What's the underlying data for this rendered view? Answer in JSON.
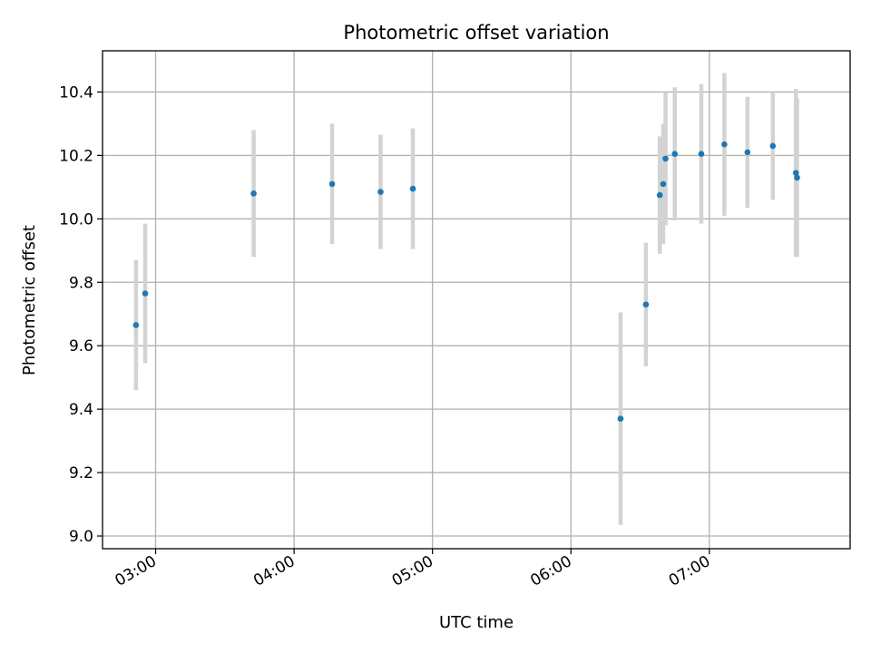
{
  "chart_data": {
    "type": "scatter",
    "title": "Photometric offset variation",
    "xlabel": "UTC time",
    "ylabel": "Photometric offset",
    "xlim_minutes": [
      157,
      481
    ],
    "ylim": [
      8.96,
      10.53
    ],
    "grid": true,
    "x_ticks": [
      {
        "minutes": 180,
        "label": "03:00"
      },
      {
        "minutes": 240,
        "label": "04:00"
      },
      {
        "minutes": 300,
        "label": "05:00"
      },
      {
        "minutes": 360,
        "label": "06:00"
      },
      {
        "minutes": 420,
        "label": "07:00"
      }
    ],
    "y_ticks": [
      {
        "value": 9.0,
        "label": "9.0"
      },
      {
        "value": 9.2,
        "label": "9.2"
      },
      {
        "value": 9.4,
        "label": "9.4"
      },
      {
        "value": 9.6,
        "label": "9.6"
      },
      {
        "value": 9.8,
        "label": "9.8"
      },
      {
        "value": 10.0,
        "label": "10.0"
      },
      {
        "value": 10.2,
        "label": "10.2"
      },
      {
        "value": 10.4,
        "label": "10.4"
      }
    ],
    "point_color": "#1f77b4",
    "errorbar_color": "#d3d3d3",
    "points": [
      {
        "t": 171.5,
        "y": 9.665,
        "err": 0.205
      },
      {
        "t": 175.5,
        "y": 9.765,
        "err": 0.22
      },
      {
        "t": 222.5,
        "y": 10.08,
        "err": 0.2
      },
      {
        "t": 256.5,
        "y": 10.11,
        "err": 0.19
      },
      {
        "t": 277.5,
        "y": 10.085,
        "err": 0.18
      },
      {
        "t": 291.5,
        "y": 10.095,
        "err": 0.19
      },
      {
        "t": 381.5,
        "y": 9.37,
        "err": 0.335
      },
      {
        "t": 392.5,
        "y": 9.73,
        "err": 0.195
      },
      {
        "t": 398.5,
        "y": 10.075,
        "err": 0.185
      },
      {
        "t": 400.0,
        "y": 10.11,
        "err": 0.19
      },
      {
        "t": 401.0,
        "y": 10.19,
        "err": 0.21
      },
      {
        "t": 405.0,
        "y": 10.205,
        "err": 0.21
      },
      {
        "t": 416.5,
        "y": 10.205,
        "err": 0.22
      },
      {
        "t": 426.5,
        "y": 10.235,
        "err": 0.225
      },
      {
        "t": 436.5,
        "y": 10.21,
        "err": 0.175
      },
      {
        "t": 447.5,
        "y": 10.23,
        "err": 0.17
      },
      {
        "t": 457.5,
        "y": 10.145,
        "err": 0.265
      },
      {
        "t": 458.0,
        "y": 10.13,
        "err": 0.25
      }
    ]
  }
}
